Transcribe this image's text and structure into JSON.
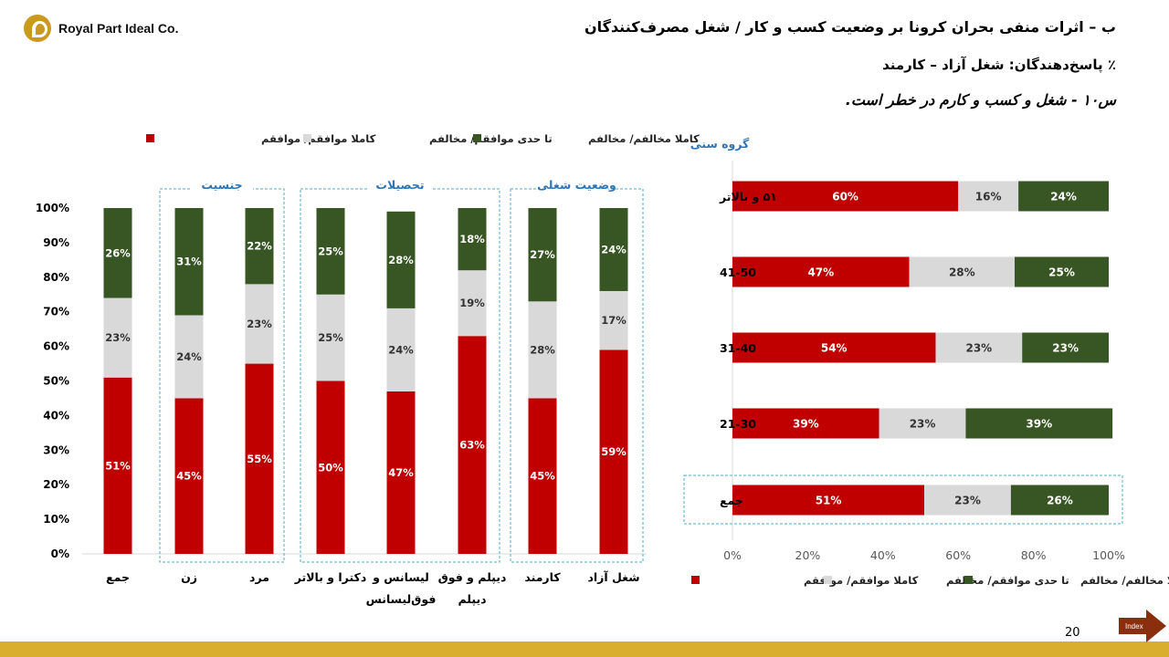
{
  "header": {
    "company": "Royal Part Ideal Co.",
    "title": "ب – اثرات منفی بحران کرونا بر وضعیت کسب و کار / شغل مصرف‌کنندگان",
    "subtitle": "٪ پاسخ‌دهندگان: شغل آزاد – کارمند",
    "question": "س۱۰ - شغل و کسب و کارم در خطر است."
  },
  "colors": {
    "agree": "#c00000",
    "neutral": "#d9d9d9",
    "disagree": "#375623",
    "group_box": "#4bacc6",
    "group_label": "#2e75b6"
  },
  "legend": [
    "کاملا موافقم/ موافقم",
    "تا حدی موافقم/ مخالفم",
    "کاملا مخالفم/ مخالفم"
  ],
  "footer": {
    "page_number": "20",
    "index_label": "Index"
  },
  "chart_data": [
    {
      "type": "bar",
      "orientation": "vertical",
      "stacked": true,
      "categories": [
        "جمع",
        "زن",
        "مرد",
        "دکترا و بالاتر",
        "لیسانس و فوق‌لیسانس",
        "دیپلم و فوق دیپلم",
        "کارمند",
        "شغل آزاد"
      ],
      "category_lines": [
        [
          "جمع"
        ],
        [
          "زن"
        ],
        [
          "مرد"
        ],
        [
          "دکترا و بالاتر"
        ],
        [
          "لیسانس و",
          "فوق‌لیسانس"
        ],
        [
          "دیپلم و فوق",
          "دیپلم"
        ],
        [
          "کارمند"
        ],
        [
          "شغل آزاد"
        ]
      ],
      "groups": [
        {
          "label": "جنسیت",
          "categories": [
            "زن",
            "مرد"
          ]
        },
        {
          "label": "تحصیلات",
          "categories": [
            "دکترا و بالاتر",
            "لیسانس و فوق‌لیسانس",
            "دیپلم و فوق دیپلم"
          ]
        },
        {
          "label": "وضعیت شغلی",
          "categories": [
            "کارمند",
            "شغل آزاد"
          ]
        }
      ],
      "series": [
        {
          "name": "کاملا موافقم/ موافقم",
          "values": [
            51,
            45,
            55,
            50,
            47,
            63,
            45,
            59
          ]
        },
        {
          "name": "تا حدی موافقم/ مخالفم",
          "values": [
            23,
            24,
            23,
            25,
            24,
            19,
            28,
            17
          ]
        },
        {
          "name": "کاملا مخالفم/ مخالفم",
          "values": [
            26,
            31,
            22,
            25,
            28,
            18,
            27,
            24
          ]
        }
      ],
      "ylim": [
        0,
        100
      ],
      "yticks": [
        "0%",
        "10%",
        "20%",
        "30%",
        "40%",
        "50%",
        "60%",
        "70%",
        "80%",
        "90%",
        "100%"
      ],
      "legend_position": "top"
    },
    {
      "type": "bar",
      "orientation": "horizontal",
      "stacked": true,
      "ylabel": "گروه سنی",
      "categories": [
        "۵۱ و بالاتر",
        "41-50",
        "31-40",
        "21-30",
        "جمع"
      ],
      "series": [
        {
          "name": "کاملا موافقم/ موافقم",
          "values": [
            60,
            47,
            54,
            39,
            51
          ]
        },
        {
          "name": "تا حدی موافقم/ مخالفم",
          "values": [
            16,
            28,
            23,
            23,
            23
          ]
        },
        {
          "name": "کاملا مخالفم/ مخالفم",
          "values": [
            24,
            25,
            23,
            39,
            26
          ]
        }
      ],
      "xlim": [
        0,
        100
      ],
      "xticks": [
        "0%",
        "20%",
        "40%",
        "60%",
        "80%",
        "100%"
      ],
      "highlighted_category": "جمع",
      "legend_position": "bottom"
    }
  ]
}
